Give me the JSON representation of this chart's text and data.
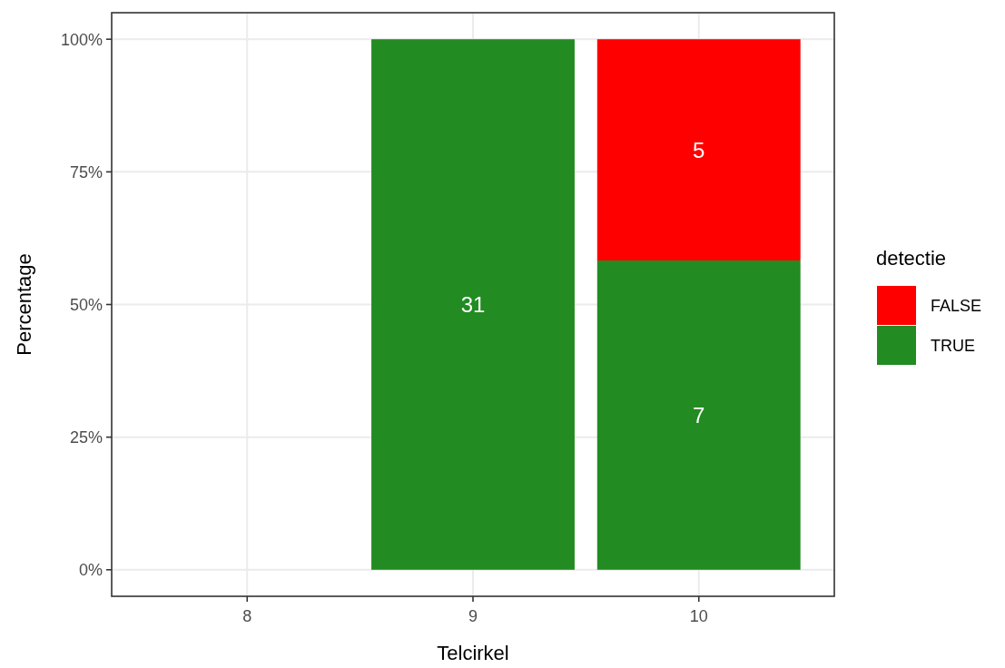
{
  "chart_data": {
    "type": "bar",
    "xlabel": "Telcirkel",
    "ylabel": "Percentage",
    "legend_title": "detectie",
    "categories": [
      "8",
      "9",
      "10"
    ],
    "series": [
      {
        "name": "TRUE",
        "color": "#228b22",
        "values": [
          null,
          100,
          58.3
        ]
      },
      {
        "name": "FALSE",
        "color": "#ff0000",
        "values": [
          null,
          null,
          41.7
        ]
      }
    ],
    "annotations": [
      "31",
      "7",
      "5"
    ],
    "stacked": true,
    "ylim": [
      -5,
      105
    ],
    "yticks": [
      {
        "value": 0,
        "label": "0%"
      },
      {
        "value": 25,
        "label": "25%"
      },
      {
        "value": 50,
        "label": "50%"
      },
      {
        "value": 75,
        "label": "75%"
      },
      {
        "value": 100,
        "label": "100%"
      }
    ],
    "grid": true,
    "legend": "right"
  }
}
